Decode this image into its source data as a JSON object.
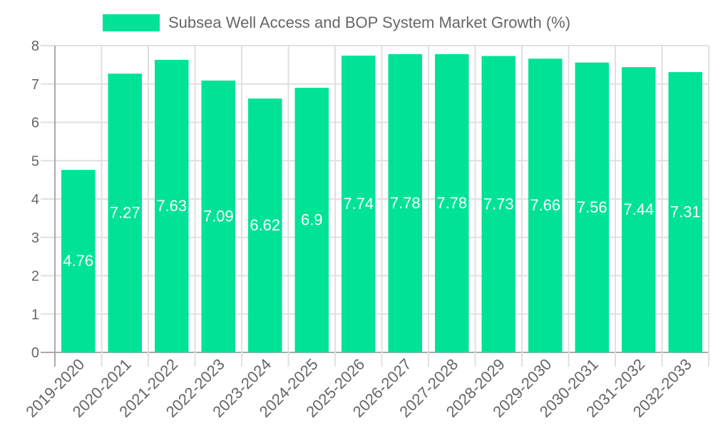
{
  "chart_data": {
    "type": "bar",
    "title": "",
    "legend": [
      {
        "label": "Subsea Well Access and BOP System Market Growth (%)",
        "color": "#00e396"
      }
    ],
    "legend_position": "top",
    "categories": [
      "2019-2020",
      "2020-2021",
      "2021-2022",
      "2022-2023",
      "2023-2024",
      "2024-2025",
      "2025-2026",
      "2026-2027",
      "2027-2028",
      "2028-2029",
      "2029-2030",
      "2030-2031",
      "2031-2032",
      "2032-2033"
    ],
    "series": [
      {
        "name": "Subsea Well Access and BOP System Market Growth (%)",
        "values": [
          4.76,
          7.27,
          7.63,
          7.09,
          6.62,
          6.9,
          7.74,
          7.78,
          7.78,
          7.73,
          7.66,
          7.56,
          7.44,
          7.31
        ],
        "color": "#00e396"
      }
    ],
    "xlabel": "",
    "ylabel": "",
    "ylim": [
      0,
      8
    ],
    "yticks": [
      0,
      1,
      2,
      3,
      4,
      5,
      6,
      7,
      8
    ],
    "grid": true,
    "data_labels": true
  }
}
